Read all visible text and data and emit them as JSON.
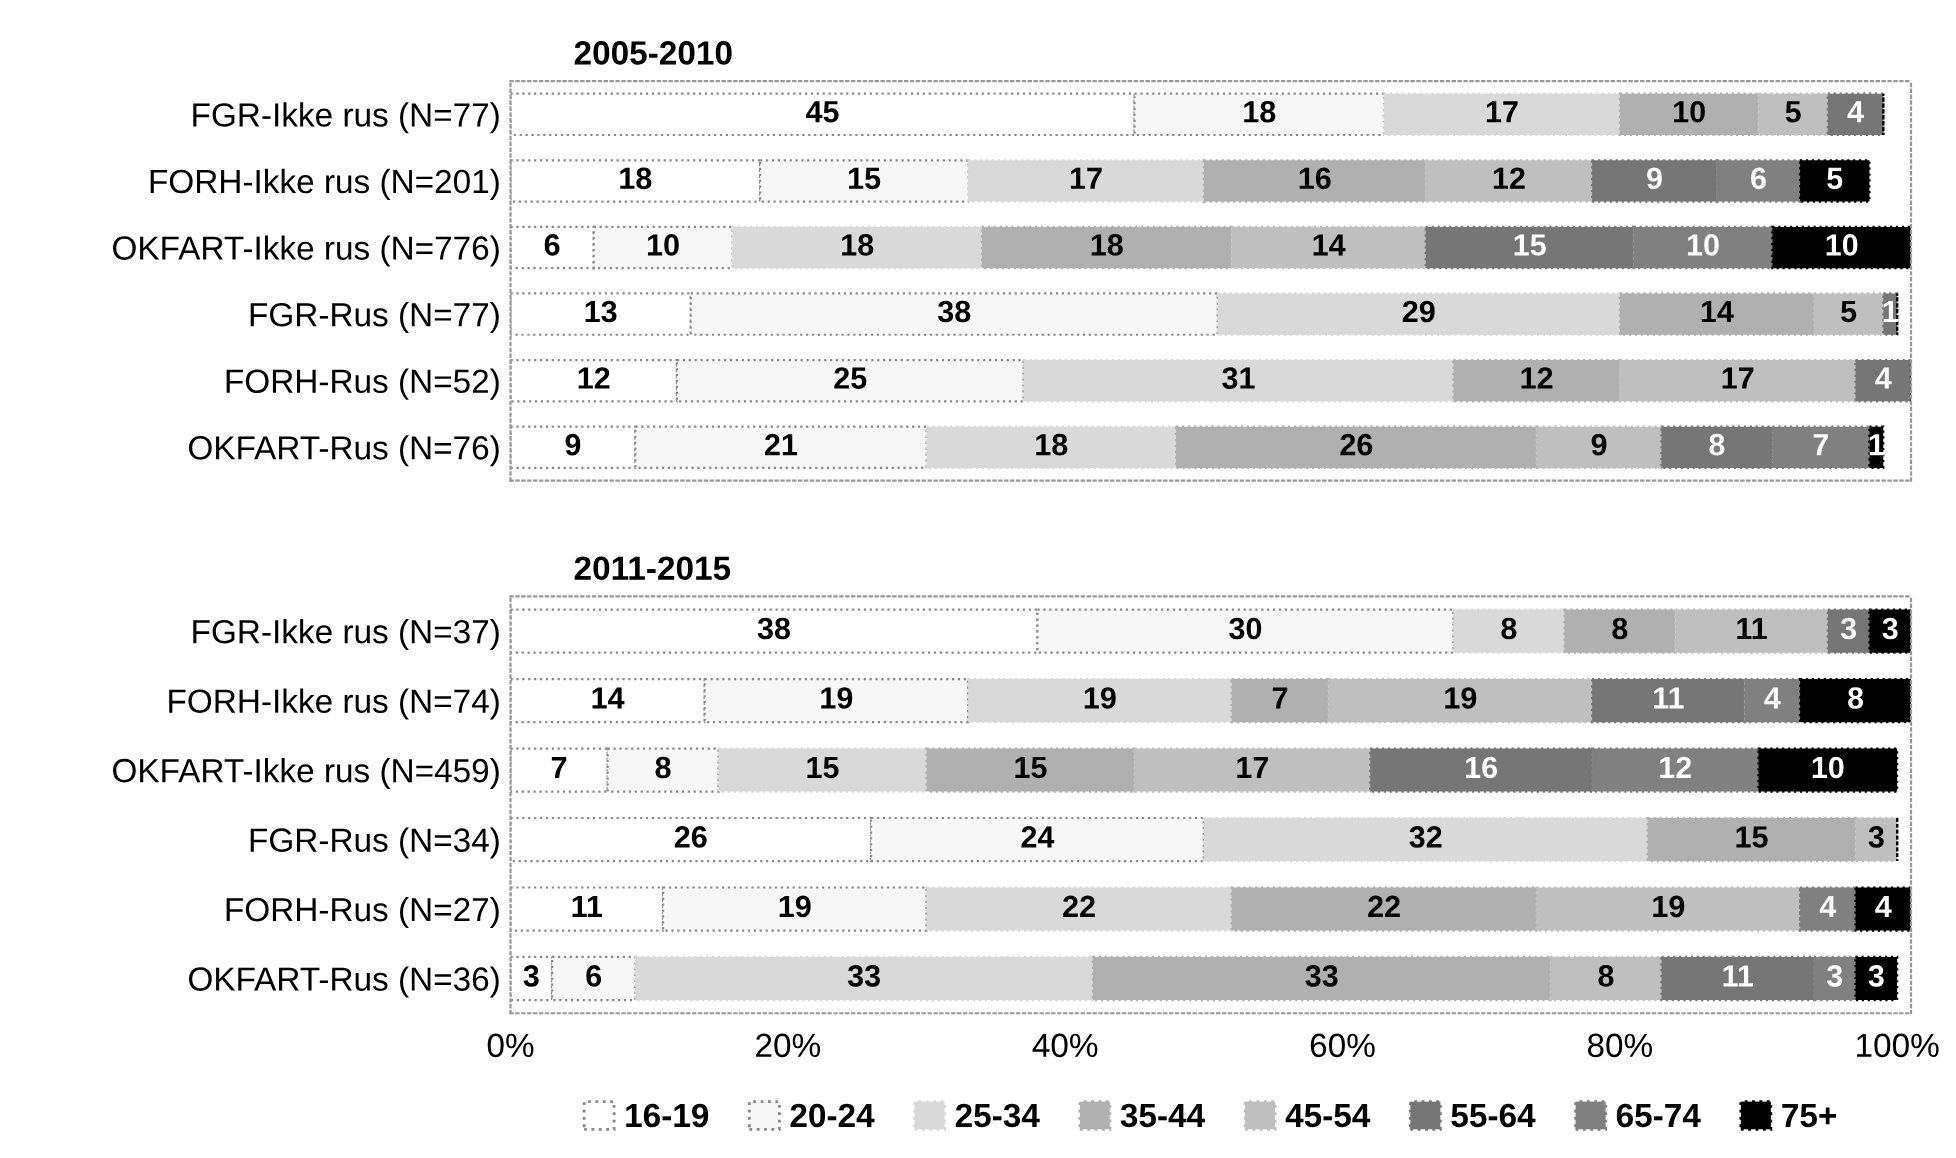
{
  "chart_data": [
    {
      "type": "bar",
      "title": "2005-2010",
      "orientation": "horizontal",
      "stacked": true,
      "grid": false,
      "tick_labels": "y",
      "xlim": [
        0,
        101
      ],
      "categories": [
        "FGR-Ikke rus (N=77)",
        "FORH-Ikke rus (N=201)",
        "OKFART-Ikke rus (N=776)",
        "FGR-Rus (N=77)",
        "FORH-Rus (N=52)",
        "OKFART-Rus (N=76)"
      ],
      "series": [
        {
          "color": "#ffffff",
          "values": [
            45,
            18,
            6,
            13,
            12,
            9
          ],
          "value_labels": [
            "45",
            "18",
            "6",
            "13",
            "12",
            "9"
          ]
        },
        {
          "color": "#f7f7f7",
          "values": [
            18,
            15,
            10,
            38,
            25,
            21
          ],
          "value_labels": [
            "18",
            "15",
            "10",
            "38",
            "25",
            "21"
          ]
        },
        {
          "color": "#d9d9d9",
          "values": [
            17,
            17,
            18,
            29,
            31,
            18
          ],
          "value_labels": [
            "17",
            "17",
            "18",
            "29",
            "31",
            "18"
          ]
        },
        {
          "color": "#b0b0b0",
          "values": [
            10,
            16,
            18,
            14,
            12,
            26
          ],
          "value_labels": [
            "10",
            "16",
            "18",
            "14",
            "12",
            "26"
          ]
        },
        {
          "color": "#bfbfbf",
          "values": [
            5,
            12,
            14,
            5,
            17,
            9
          ],
          "value_labels": [
            "5",
            "12",
            "14",
            "5",
            "17",
            "9"
          ]
        },
        {
          "color": "#767676",
          "values": [
            4,
            9,
            15,
            1,
            4,
            8
          ],
          "value_labels": [
            "4",
            "9",
            "15",
            "1",
            "4",
            "8"
          ]
        },
        {
          "color": "#808080",
          "values": [
            0,
            6,
            10,
            0,
            0,
            7
          ],
          "value_labels": [
            null,
            "6",
            "10",
            null,
            null,
            "7"
          ]
        },
        {
          "color": "#000000",
          "values": [
            0,
            5,
            10,
            0,
            0,
            1
          ],
          "value_labels": [
            null,
            "5",
            "10",
            null,
            null,
            "1"
          ]
        }
      ]
    },
    {
      "type": "bar",
      "title": "2011-2015",
      "orientation": "horizontal",
      "stacked": true,
      "legend": "bottom",
      "grid": false,
      "xlim": [
        0,
        101
      ],
      "xticks": [
        {
          "value": 0,
          "label": "0%"
        },
        {
          "value": 20,
          "label": "20%"
        },
        {
          "value": 40,
          "label": "40%"
        },
        {
          "value": 60,
          "label": "60%"
        },
        {
          "value": 80,
          "label": "80%"
        },
        {
          "value": 100,
          "label": "100%"
        }
      ],
      "categories": [
        "FGR-Ikke rus (N=37)",
        "FORH-Ikke rus (N=74)",
        "OKFART-Ikke rus (N=459)",
        "FGR-Rus (N=34)",
        "FORH-Rus (N=27)",
        "OKFART-Rus (N=36)"
      ],
      "series": [
        {
          "name": "16-19",
          "color": "#ffffff",
          "values": [
            38,
            14,
            7,
            26,
            11,
            3
          ],
          "value_labels": [
            "38",
            "14",
            "7",
            "26",
            "11",
            "3"
          ]
        },
        {
          "name": "20-24",
          "color": "#f7f7f7",
          "values": [
            30,
            19,
            8,
            24,
            19,
            6
          ],
          "value_labels": [
            "30",
            "19",
            "8",
            "24",
            "19",
            "6"
          ]
        },
        {
          "name": "25-34",
          "color": "#d9d9d9",
          "values": [
            8,
            19,
            15,
            32,
            22,
            33
          ],
          "value_labels": [
            "8",
            "19",
            "15",
            "32",
            "22",
            "33"
          ]
        },
        {
          "name": "35-44",
          "color": "#b0b0b0",
          "values": [
            8,
            7,
            15,
            15,
            22,
            33
          ],
          "value_labels": [
            "8",
            "7",
            "15",
            "15",
            "22",
            "33"
          ]
        },
        {
          "name": "45-54",
          "color": "#bfbfbf",
          "values": [
            11,
            19,
            17,
            3,
            19,
            8
          ],
          "value_labels": [
            "11",
            "19",
            "17",
            "3",
            "19",
            "8"
          ]
        },
        {
          "name": "55-64",
          "color": "#767676",
          "values": [
            3,
            11,
            16,
            0,
            0,
            11
          ],
          "value_labels": [
            "3",
            "11",
            "16",
            null,
            null,
            "11"
          ]
        },
        {
          "name": "65-74",
          "color": "#808080",
          "values": [
            0,
            4,
            12,
            0,
            4,
            3
          ],
          "value_labels": [
            null,
            "4",
            "12",
            null,
            "4",
            "3"
          ]
        },
        {
          "name": "75+",
          "color": "#000000",
          "values": [
            3,
            8,
            10,
            0,
            4,
            3
          ],
          "value_labels": [
            "3",
            "8",
            "10",
            null,
            "4",
            "3"
          ]
        }
      ]
    }
  ]
}
